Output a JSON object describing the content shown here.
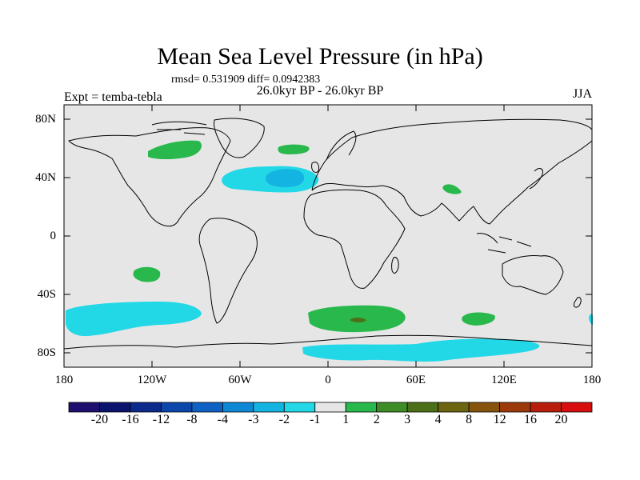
{
  "title": "Mean Sea Level Pressure (in hPa)",
  "stats": "rmsd= 0.531909 diff= 0.0942383",
  "period": "26.0kyr BP - 26.0kyr BP",
  "experiment": "Expt = temba-tebla",
  "season": "JJA",
  "axes": {
    "lat_labels": [
      "80N",
      "40N",
      "0",
      "40S",
      "80S"
    ],
    "lon_labels": [
      "180",
      "120W",
      "60W",
      "0",
      "60E",
      "120E",
      "180"
    ]
  },
  "colorbar": {
    "colors": [
      "#1e0f6e",
      "#0a136e",
      "#0c2a8c",
      "#0c46aa",
      "#0f62c4",
      "#0e88d4",
      "#14b4e2",
      "#22d8e6",
      "#e6e6e6",
      "#28b84c",
      "#3e8c28",
      "#4c7018",
      "#6c6410",
      "#86540c",
      "#9c3a0c",
      "#b81e0c",
      "#d80e0e"
    ],
    "labels": [
      "-20",
      "-16",
      "-12",
      "-8",
      "-4",
      "-3",
      "-2",
      "-1",
      "1",
      "2",
      "3",
      "4",
      "8",
      "12",
      "16",
      "20"
    ]
  },
  "map": {
    "background_color": "#e6e6e6",
    "regions": [
      {
        "name": "north-atlantic-low",
        "level": "-2 to -1",
        "color": "#22d8e6"
      },
      {
        "name": "north-atlantic-core",
        "level": "-3 to -2",
        "color": "#14b4e2"
      },
      {
        "name": "southern-pacific-low",
        "level": "-2 to -1",
        "color": "#22d8e6"
      },
      {
        "name": "antarctic-low",
        "level": "-2 to -1",
        "color": "#22d8e6"
      },
      {
        "name": "hudson-high",
        "level": "1 to 2",
        "color": "#28b84c"
      },
      {
        "name": "north-sea-high",
        "level": "1 to 2",
        "color": "#28b84c"
      },
      {
        "name": "tibet-high",
        "level": "1 to 2",
        "color": "#28b84c"
      },
      {
        "name": "south-pacific-high",
        "level": "1 to 2",
        "color": "#28b84c"
      },
      {
        "name": "south-atlantic-high",
        "level": "1 to 2",
        "color": "#28b84c"
      },
      {
        "name": "south-atlantic-core",
        "level": "3 to 4",
        "color": "#4c7018"
      },
      {
        "name": "south-indian-high",
        "level": "1 to 2",
        "color": "#28b84c"
      }
    ]
  }
}
